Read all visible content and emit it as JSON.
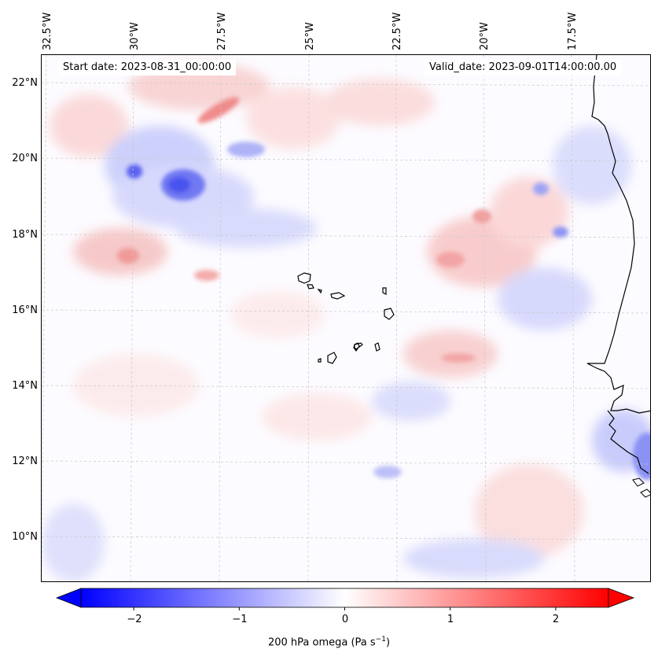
{
  "map": {
    "start_date_text": "Start date: 2023-08-31_00:00:00",
    "valid_date_text": "Valid_date: 2023-09-01T14:00:00.00",
    "lon_labels": [
      "32.5°W",
      "30°W",
      "27.5°W",
      "25°W",
      "22.5°W",
      "20°W",
      "17.5°W"
    ],
    "lat_labels": [
      "22°N",
      "20°N",
      "18°N",
      "16°N",
      "14°N",
      "12°N",
      "10°N"
    ],
    "field": "200 hPa omega",
    "extent": {
      "lon_min": -33.0,
      "lon_max": -15.0,
      "lat_min": 8.9,
      "lat_max": 22.8
    }
  },
  "colorbar": {
    "label_prefix": "200 hPa omega (Pa s",
    "label_exp": "−1",
    "label_suffix": ")",
    "tick_labels": [
      "−2",
      "−1",
      "0",
      "1",
      "2"
    ],
    "tick_values": [
      -2,
      -1,
      0,
      1,
      2
    ],
    "range": [
      -2.5,
      2.5
    ],
    "colormap": "bwr",
    "low_color": "#0000ff",
    "mid_color": "#ffffff",
    "high_color": "#ff0000"
  }
}
